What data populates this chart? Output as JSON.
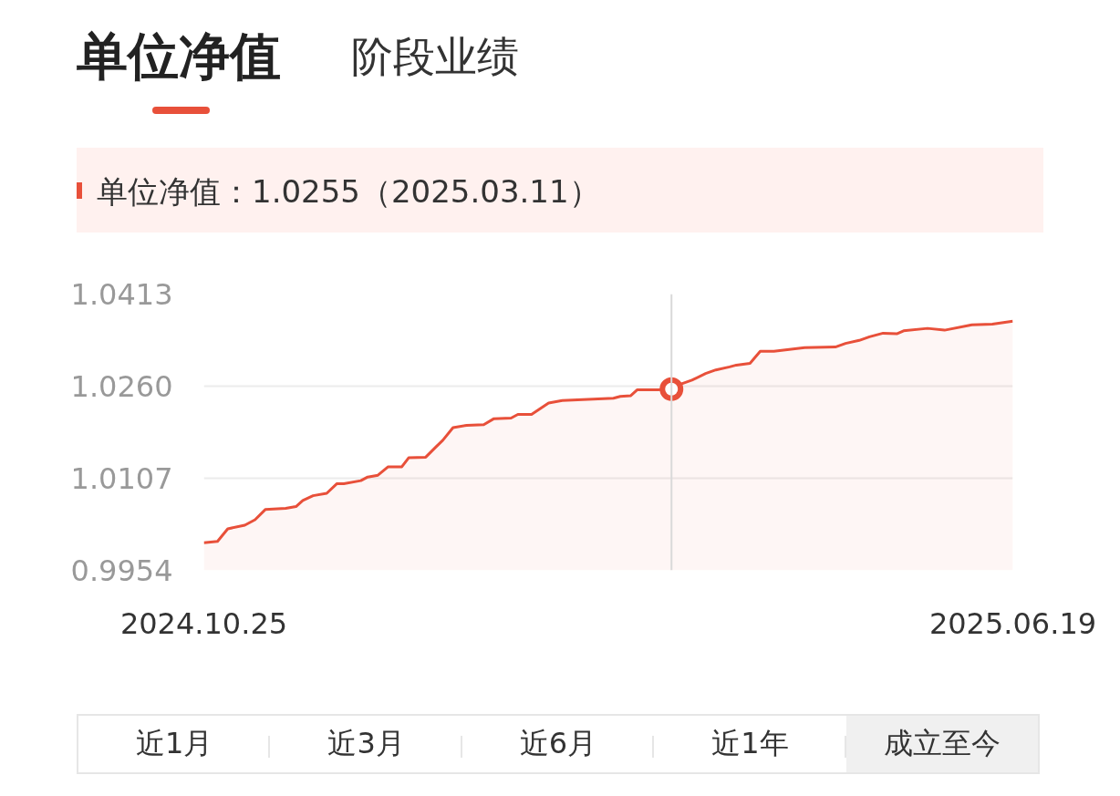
{
  "chart_data": {
    "type": "area",
    "title": "单位净值",
    "annotations": [
      "阶段业绩",
      "单位净值：1.0255（2025.03.11）",
      "近1月",
      "近3月",
      "近6月",
      "近1年",
      "成立至今"
    ],
    "x": [
      "2024-10-25",
      "2024-10-29",
      "2024-11-01",
      "2024-11-06",
      "2024-11-09",
      "2024-11-12",
      "2024-11-18",
      "2024-11-21",
      "2024-11-23",
      "2024-11-26",
      "2024-11-30",
      "2024-12-03",
      "2024-12-05",
      "2024-12-10",
      "2024-12-12",
      "2024-12-15",
      "2024-12-18",
      "2024-12-22",
      "2024-12-24",
      "2024-12-29",
      "2025-01-01",
      "2025-01-03",
      "2025-01-06",
      "2025-01-10",
      "2025-01-15",
      "2025-01-18",
      "2025-01-23",
      "2025-01-25",
      "2025-01-29",
      "2025-02-03",
      "2025-02-07",
      "2025-02-22",
      "2025-02-24",
      "2025-02-27",
      "2025-03-01",
      "2025-03-07",
      "2025-03-11",
      "2025-03-14",
      "2025-03-17",
      "2025-03-21",
      "2025-03-24",
      "2025-03-28",
      "2025-03-30",
      "2025-04-03",
      "2025-04-06",
      "2025-04-10",
      "2025-04-19",
      "2025-04-28",
      "2025-05-01",
      "2025-05-05",
      "2025-05-08",
      "2025-05-12",
      "2025-05-16",
      "2025-05-18",
      "2025-05-25",
      "2025-05-30",
      "2025-06-07",
      "2025-06-13",
      "2025-06-19"
    ],
    "series": [
      {
        "color": "#e8503a",
        "values": [
          1.0,
          1.0002,
          1.0023,
          1.0029,
          1.0038,
          1.0055,
          1.0057,
          1.006,
          1.007,
          1.0078,
          1.0082,
          1.0098,
          1.0098,
          1.0103,
          1.0109,
          1.0112,
          1.0126,
          1.0126,
          1.0141,
          1.0142,
          1.0159,
          1.017,
          1.0191,
          1.0195,
          1.0196,
          1.0206,
          1.0207,
          1.0213,
          1.0213,
          1.0232,
          1.0236,
          1.024,
          1.0243,
          1.0244,
          1.0254,
          1.0254,
          1.0255,
          1.0264,
          1.027,
          1.0281,
          1.0287,
          1.0292,
          1.0295,
          1.0298,
          1.0318,
          1.0318,
          1.0324,
          1.0325,
          1.0331,
          1.0336,
          1.0342,
          1.0348,
          1.0347,
          1.0352,
          1.0356,
          1.0353,
          1.0362,
          1.0363,
          1.0368
        ]
      },
      {
        "type": "scatter",
        "marker": "circle",
        "color": "#e8503a",
        "x": [
          "2025-03-11"
        ],
        "values": [
          1.0255
        ]
      }
    ],
    "xlim": [
      "2024-10-25",
      "2025-06-19"
    ],
    "xticks": [
      {
        "value": "2024-10-25",
        "label": "2024.10.25"
      },
      {
        "value": "2025-06-19",
        "label": "2025.06.19"
      }
    ],
    "ylim": [
      0.9954,
      1.0413
    ],
    "yticks": [
      0.9954,
      1.0107,
      {
        "value": 1.026,
        "label": "1.0260"
      },
      1.0413
    ],
    "grid": "y",
    "ref_lines": [
      {
        "axis": "x",
        "value": "2025-03-11",
        "label": null,
        "color": "#d9d9d9"
      }
    ]
  }
}
